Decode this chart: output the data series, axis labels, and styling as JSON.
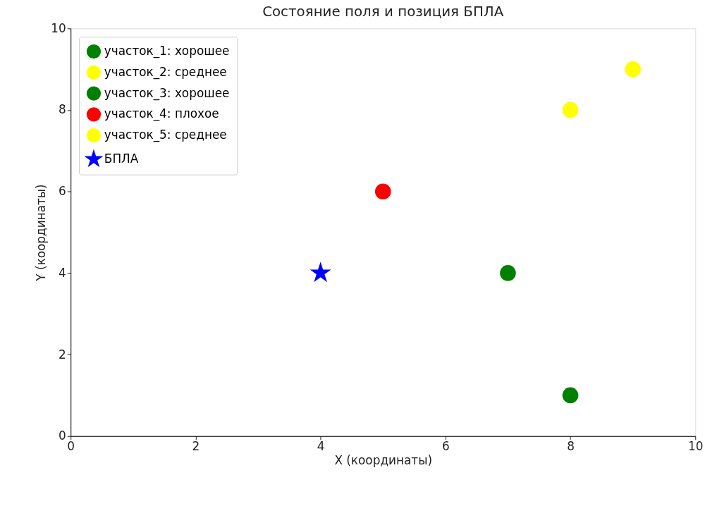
{
  "chart_data": {
    "type": "scatter",
    "title": "Состояние поля и позиция БПЛА",
    "xlabel": "X (координаты)",
    "ylabel": "Y (координаты)",
    "xlim": [
      0,
      10
    ],
    "ylim": [
      0,
      10
    ],
    "xticks": [
      0,
      2,
      4,
      6,
      8,
      10
    ],
    "yticks": [
      0,
      2,
      4,
      6,
      8,
      10
    ],
    "grid": false,
    "legend": "top left",
    "marker": "circle",
    "series": [
      {
        "name": "участок_1: хорошее",
        "color": "#008000",
        "x": [
          8
        ],
        "values": [
          1
        ]
      },
      {
        "name": "участок_2: среднее",
        "color": "#ffff00",
        "x": [
          8
        ],
        "values": [
          8
        ]
      },
      {
        "name": "участок_3: хорошее",
        "color": "#008000",
        "x": [
          7
        ],
        "values": [
          4
        ]
      },
      {
        "name": "участок_4: плохое",
        "color": "#ff0000",
        "x": [
          5
        ],
        "values": [
          6
        ]
      },
      {
        "name": "участок_5: среднее",
        "color": "#ffff00",
        "x": [
          9
        ],
        "values": [
          9
        ]
      },
      {
        "name": "БПЛА",
        "color": "#0000ff",
        "x": [
          4
        ],
        "values": [
          4
        ],
        "marker": "star"
      }
    ]
  }
}
